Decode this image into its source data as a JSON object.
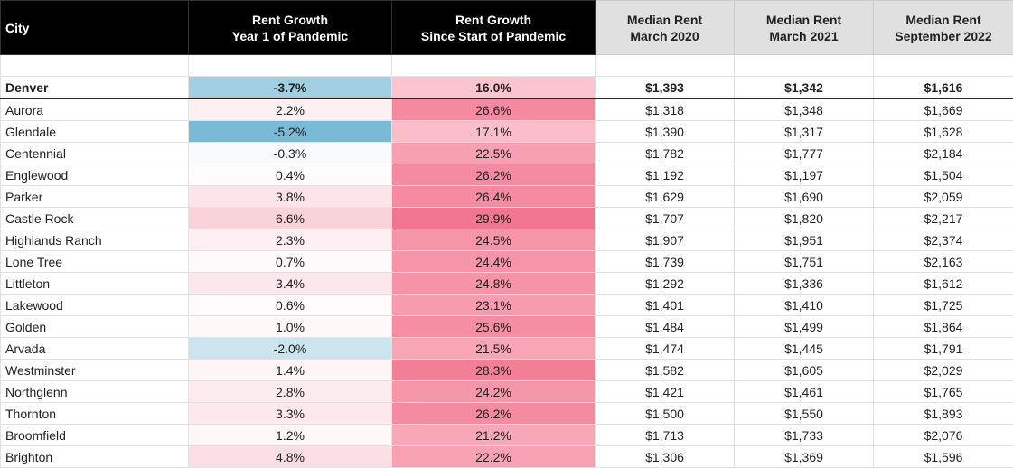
{
  "table": {
    "header": [
      "City",
      "Rent Growth\nYear 1 of Pandemic",
      "Rent Growth\nSince Start of Pandemic",
      "Median Rent\nMarch 2020",
      "Median Rent\nMarch 2021",
      "Median Rent\nSeptember 2022"
    ],
    "rows": [
      [
        "Denver",
        "-3.7%",
        "16.0%",
        "$1,393",
        "$1,342",
        "$1,616"
      ],
      [
        "Aurora",
        "2.2%",
        "26.6%",
        "$1,318",
        "$1,348",
        "$1,669"
      ],
      [
        "Glendale",
        "-5.2%",
        "17.1%",
        "$1,390",
        "$1,317",
        "$1,628"
      ],
      [
        "Centennial",
        "-0.3%",
        "22.5%",
        "$1,782",
        "$1,777",
        "$2,184"
      ],
      [
        "Englewood",
        "0.4%",
        "26.2%",
        "$1,192",
        "$1,197",
        "$1,504"
      ],
      [
        "Parker",
        "3.8%",
        "26.4%",
        "$1,629",
        "$1,690",
        "$2,059"
      ],
      [
        "Castle Rock",
        "6.6%",
        "29.9%",
        "$1,707",
        "$1,820",
        "$2,217"
      ],
      [
        "Highlands Ranch",
        "2.3%",
        "24.5%",
        "$1,907",
        "$1,951",
        "$2,374"
      ],
      [
        "Lone Tree",
        "0.7%",
        "24.4%",
        "$1,739",
        "$1,751",
        "$2,163"
      ],
      [
        "Littleton",
        "3.4%",
        "24.8%",
        "$1,292",
        "$1,336",
        "$1,612"
      ],
      [
        "Lakewood",
        "0.6%",
        "23.1%",
        "$1,401",
        "$1,410",
        "$1,725"
      ],
      [
        "Golden",
        "1.0%",
        "25.6%",
        "$1,484",
        "$1,499",
        "$1,864"
      ],
      [
        "Arvada",
        "-2.0%",
        "21.5%",
        "$1,474",
        "$1,445",
        "$1,791"
      ],
      [
        "Westminster",
        "1.4%",
        "28.3%",
        "$1,582",
        "$1,605",
        "$2,029"
      ],
      [
        "Northglenn",
        "2.8%",
        "24.2%",
        "$1,421",
        "$1,461",
        "$1,765"
      ],
      [
        "Thornton",
        "3.3%",
        "26.2%",
        "$1,500",
        "$1,550",
        "$1,893"
      ],
      [
        "Broomfield",
        "1.2%",
        "21.2%",
        "$1,713",
        "$1,733",
        "$2,076"
      ],
      [
        "Brighton",
        "4.8%",
        "22.2%",
        "$1,306",
        "$1,369",
        "$1,596"
      ]
    ]
  }
}
